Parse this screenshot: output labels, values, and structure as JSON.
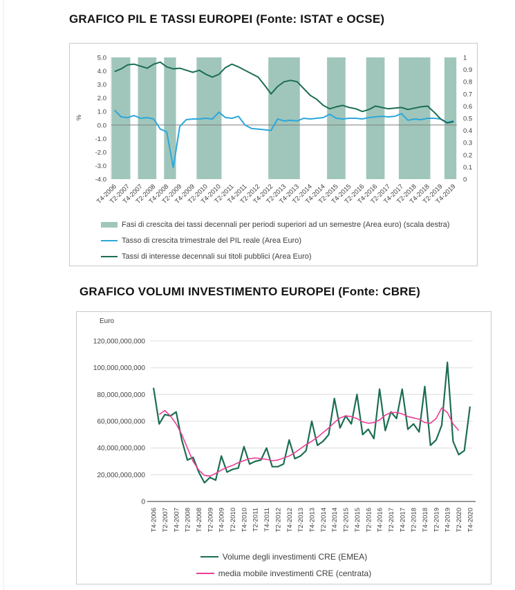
{
  "chart_data": [
    {
      "id": "pil-tassi",
      "type": "line",
      "title": "GRAFICO PIL E TASSI EUROPEI (Fonte: ISTAT e OCSE)",
      "ylabel_left": "%",
      "y_left_range": [
        -4,
        5
      ],
      "y_left_ticks": [
        "5.0",
        "4.0",
        "3.0",
        "2.0",
        "1.0",
        "0.0",
        "-1.0",
        "-2.0",
        "-3.0",
        "-4.0"
      ],
      "y_right_range": [
        0,
        1
      ],
      "y_right_ticks": [
        "1",
        "0.9",
        "0.8",
        "0.7",
        "0.6",
        "0.5",
        "0.4",
        "0.3",
        "0.2",
        "0.1",
        "0"
      ],
      "n_points": 53,
      "x_tick_labels": [
        "T4-2006",
        "T2-2007",
        "T4-2007",
        "T2-2008",
        "T4-2008",
        "T2-2009",
        "T4-2009",
        "T2-2010",
        "T4-2010",
        "T2-2011",
        "T4-2011",
        "T2-2012",
        "T4-2012",
        "T2-2013",
        "T4-2013",
        "T2-2014",
        "T4-2014",
        "T2-2015",
        "T4-2015",
        "T2-2016",
        "T4-2016",
        "T2-2017",
        "T4-2017",
        "T2-2018",
        "T4-2018",
        "T2-2019",
        "T4-2019"
      ],
      "band_legend_label": "Fasi di crescita dei tassi decennali per periodi superiori ad un semestre (Area euro) (scala destra)",
      "band_color": "#a0c6bb",
      "growth_bands_quarter_ranges": [
        [
          0,
          2
        ],
        [
          4,
          6
        ],
        [
          8,
          9
        ],
        [
          13,
          16
        ],
        [
          24,
          28
        ],
        [
          33,
          35
        ],
        [
          39,
          41
        ],
        [
          44,
          48
        ],
        [
          51,
          52
        ]
      ],
      "series": [
        {
          "name": "Tasso di crescita trimestrale del PIL reale (Area Euro)",
          "color": "#2ba7da",
          "axis": "left",
          "values": [
            1.1,
            0.6,
            0.55,
            0.7,
            0.5,
            0.55,
            0.45,
            -0.3,
            -0.5,
            -3.15,
            -0.1,
            0.4,
            0.45,
            0.45,
            0.5,
            0.45,
            0.95,
            0.55,
            0.5,
            0.65,
            0.0,
            -0.25,
            -0.3,
            -0.35,
            -0.4,
            0.45,
            0.3,
            0.35,
            0.3,
            0.5,
            0.45,
            0.5,
            0.55,
            0.8,
            0.5,
            0.45,
            0.5,
            0.5,
            0.45,
            0.55,
            0.6,
            0.65,
            0.6,
            0.65,
            0.85,
            0.35,
            0.45,
            0.4,
            0.5,
            0.5,
            0.45,
            0.2,
            0.3
          ]
        },
        {
          "name": "Tassi di interesse decennali sui titoli pubblici (Area Euro)",
          "color": "#1b6d52",
          "axis": "left",
          "values": [
            3.95,
            4.15,
            4.45,
            4.5,
            4.35,
            4.2,
            4.5,
            4.65,
            4.3,
            4.15,
            4.2,
            4.05,
            3.9,
            4.05,
            3.75,
            3.55,
            3.75,
            4.25,
            4.5,
            4.3,
            4.05,
            3.8,
            3.55,
            2.95,
            2.3,
            2.85,
            3.2,
            3.3,
            3.2,
            2.7,
            2.2,
            1.9,
            1.45,
            1.2,
            1.35,
            1.45,
            1.3,
            1.2,
            1.0,
            1.15,
            1.4,
            1.3,
            1.2,
            1.25,
            1.3,
            1.15,
            1.25,
            1.35,
            1.4,
            0.95,
            0.45,
            0.15,
            0.25
          ]
        }
      ]
    },
    {
      "id": "volumi-investimento",
      "type": "line",
      "title": "GRAFICO VOLUMI INVESTIMENTO EUROPEI (Fonte: CBRE)",
      "ylabel": "Euro",
      "y_ticks_values_billions": [
        0,
        20,
        40,
        60,
        80,
        100,
        120
      ],
      "y_tick_labels": [
        "0",
        "20,000,000,000",
        "40,000,000,000",
        "60,000,000,000",
        "80,000,000,000",
        "100,000,000,000",
        "120,000,000,000"
      ],
      "n_points": 57,
      "x_tick_labels": [
        "T4-2006",
        "T2-2007",
        "T4-2007",
        "T2-2008",
        "T4-2008",
        "T2-2009",
        "T4-2009",
        "T2-2010",
        "T4-2010",
        "T2-2011",
        "T4-2011",
        "T2-2012",
        "T4-2012",
        "T2-2013",
        "T4-2013",
        "T2-2014",
        "T4-2014",
        "T2-2015",
        "T4-2015",
        "T2-2016",
        "T4-2016",
        "T2-2017",
        "T4-2017",
        "T2-2018",
        "T4-2018",
        "T2-2019",
        "T4-2019",
        "T2-2020",
        "T4-2020"
      ],
      "series": [
        {
          "name": "Volume degli investimenti CRE (EMEA)",
          "color": "#1b6d52",
          "values_billions": [
            85,
            58,
            65,
            64,
            67,
            46,
            31,
            33,
            22,
            14,
            18,
            16,
            34,
            22,
            24,
            25,
            41,
            28,
            30,
            31,
            40,
            26,
            26,
            28,
            46,
            32,
            34,
            38,
            60,
            42,
            45,
            50,
            77,
            55,
            64,
            58,
            80,
            50,
            54,
            47,
            84,
            53,
            67,
            62,
            84,
            54,
            58,
            52,
            86,
            42,
            46,
            57,
            104,
            45,
            35,
            38,
            71
          ]
        },
        {
          "name": "media mobile investimenti CRE (centrata)",
          "color": "#ec3c96",
          "values_billions": [
            null,
            65,
            68,
            64,
            58,
            50,
            40,
            30,
            23.5,
            19.5,
            19,
            21,
            23.5,
            25.5,
            27,
            29,
            30.5,
            32,
            32.5,
            32,
            31.5,
            30.5,
            31,
            32.5,
            34,
            36.5,
            39.5,
            42.5,
            45,
            48,
            51.5,
            55,
            59,
            62.5,
            64,
            63.5,
            62,
            59.5,
            58.5,
            59,
            61,
            64.5,
            66.5,
            66.5,
            65.5,
            63.5,
            62.5,
            61.5,
            59,
            58.5,
            62,
            70,
            66.5,
            58,
            53,
            null,
            null
          ]
        }
      ]
    }
  ]
}
